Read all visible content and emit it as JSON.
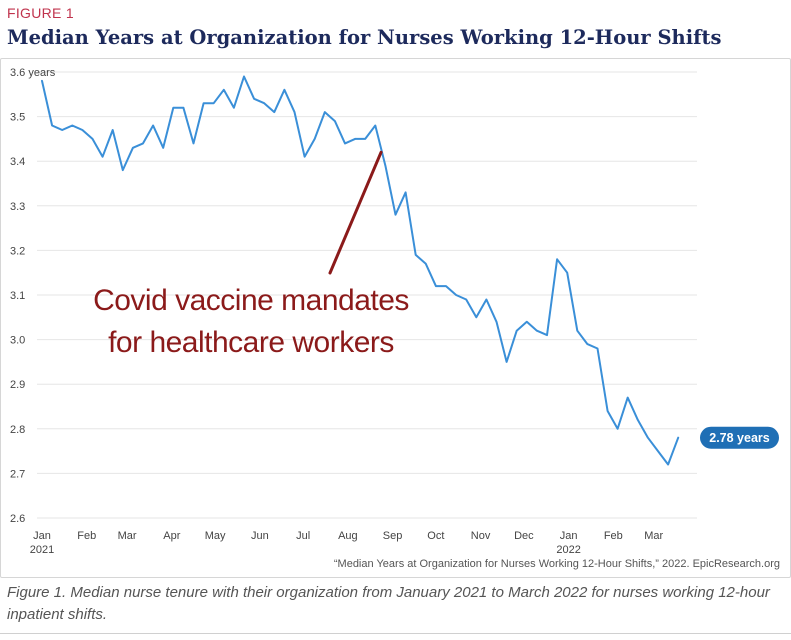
{
  "header": {
    "figure_label": "FIGURE 1",
    "title": "Median Years at Organization for Nurses Working 12-Hour Shifts"
  },
  "chart_data": {
    "type": "line",
    "title": "Median Years at Organization for Nurses Working 12-Hour Shifts",
    "xlabel": "",
    "ylabel": "",
    "ylim": [
      2.6,
      3.6
    ],
    "yticks": [
      2.6,
      2.7,
      2.8,
      2.9,
      3.0,
      3.1,
      3.2,
      3.3,
      3.4,
      3.5,
      3.6
    ],
    "ytick_labels": [
      "2.6",
      "2.7",
      "2.8",
      "2.9",
      "3.0",
      "3.1",
      "3.2",
      "3.3",
      "3.4",
      "3.5",
      "3.6 years"
    ],
    "xlim": [
      "2021-01-01",
      "2022-03-31"
    ],
    "x_ticks": [
      {
        "date": "2021-01-01",
        "label": "Jan",
        "sublabel": "2021"
      },
      {
        "date": "2021-02-01",
        "label": "Feb",
        "sublabel": ""
      },
      {
        "date": "2021-03-01",
        "label": "Mar",
        "sublabel": ""
      },
      {
        "date": "2021-04-01",
        "label": "Apr",
        "sublabel": ""
      },
      {
        "date": "2021-05-01",
        "label": "May",
        "sublabel": ""
      },
      {
        "date": "2021-06-01",
        "label": "Jun",
        "sublabel": ""
      },
      {
        "date": "2021-07-01",
        "label": "Jul",
        "sublabel": ""
      },
      {
        "date": "2021-08-01",
        "label": "Aug",
        "sublabel": ""
      },
      {
        "date": "2021-09-01",
        "label": "Sep",
        "sublabel": ""
      },
      {
        "date": "2021-10-01",
        "label": "Oct",
        "sublabel": ""
      },
      {
        "date": "2021-11-01",
        "label": "Nov",
        "sublabel": ""
      },
      {
        "date": "2021-12-01",
        "label": "Dec",
        "sublabel": ""
      },
      {
        "date": "2022-01-01",
        "label": "Jan",
        "sublabel": "2022"
      },
      {
        "date": "2022-02-01",
        "label": "Feb",
        "sublabel": ""
      },
      {
        "date": "2022-03-01",
        "label": "Mar",
        "sublabel": ""
      }
    ],
    "grid": true,
    "series": [
      {
        "color": "#3a8fd8",
        "points": [
          [
            "2021-01-01",
            3.58
          ],
          [
            "2021-01-08",
            3.48
          ],
          [
            "2021-01-15",
            3.47
          ],
          [
            "2021-01-22",
            3.48
          ],
          [
            "2021-01-29",
            3.47
          ],
          [
            "2021-02-05",
            3.45
          ],
          [
            "2021-02-12",
            3.41
          ],
          [
            "2021-02-19",
            3.47
          ],
          [
            "2021-02-26",
            3.38
          ],
          [
            "2021-03-05",
            3.43
          ],
          [
            "2021-03-12",
            3.44
          ],
          [
            "2021-03-19",
            3.48
          ],
          [
            "2021-03-26",
            3.43
          ],
          [
            "2021-04-02",
            3.52
          ],
          [
            "2021-04-09",
            3.52
          ],
          [
            "2021-04-16",
            3.44
          ],
          [
            "2021-04-23",
            3.53
          ],
          [
            "2021-04-30",
            3.53
          ],
          [
            "2021-05-07",
            3.56
          ],
          [
            "2021-05-14",
            3.52
          ],
          [
            "2021-05-21",
            3.59
          ],
          [
            "2021-05-28",
            3.54
          ],
          [
            "2021-06-04",
            3.53
          ],
          [
            "2021-06-11",
            3.51
          ],
          [
            "2021-06-18",
            3.56
          ],
          [
            "2021-06-25",
            3.51
          ],
          [
            "2021-07-02",
            3.41
          ],
          [
            "2021-07-09",
            3.45
          ],
          [
            "2021-07-16",
            3.51
          ],
          [
            "2021-07-23",
            3.49
          ],
          [
            "2021-07-30",
            3.44
          ],
          [
            "2021-08-06",
            3.45
          ],
          [
            "2021-08-13",
            3.45
          ],
          [
            "2021-08-20",
            3.48
          ],
          [
            "2021-08-27",
            3.39
          ],
          [
            "2021-09-03",
            3.28
          ],
          [
            "2021-09-10",
            3.33
          ],
          [
            "2021-09-17",
            3.19
          ],
          [
            "2021-09-24",
            3.17
          ],
          [
            "2021-10-01",
            3.12
          ],
          [
            "2021-10-08",
            3.12
          ],
          [
            "2021-10-15",
            3.1
          ],
          [
            "2021-10-22",
            3.09
          ],
          [
            "2021-10-29",
            3.05
          ],
          [
            "2021-11-05",
            3.09
          ],
          [
            "2021-11-12",
            3.04
          ],
          [
            "2021-11-19",
            2.95
          ],
          [
            "2021-11-26",
            3.02
          ],
          [
            "2021-12-03",
            3.04
          ],
          [
            "2021-12-10",
            3.02
          ],
          [
            "2021-12-17",
            3.01
          ],
          [
            "2021-12-24",
            3.18
          ],
          [
            "2021-12-31",
            3.15
          ],
          [
            "2022-01-07",
            3.02
          ],
          [
            "2022-01-14",
            2.99
          ],
          [
            "2022-01-21",
            2.98
          ],
          [
            "2022-01-28",
            2.84
          ],
          [
            "2022-02-04",
            2.8
          ],
          [
            "2022-02-11",
            2.87
          ],
          [
            "2022-02-18",
            2.82
          ],
          [
            "2022-02-25",
            2.78
          ],
          [
            "2022-03-04",
            2.75
          ],
          [
            "2022-03-11",
            2.72
          ],
          [
            "2022-03-18",
            2.78
          ]
        ]
      }
    ],
    "end_label": "2.78 years",
    "end_label_color": "#1f6fb5",
    "annotation": {
      "lines": [
        "Covid vaccine mandates",
        "for healthcare workers"
      ],
      "color": "#8b1a1a",
      "points_to": [
        "2021-08-24",
        3.42
      ]
    },
    "source": "“Median Years at Organization for Nurses Working 12-Hour Shifts,” 2022. EpicResearch.org"
  },
  "caption": "Figure 1. Median nurse tenure with their organization from January 2021 to March 2022 for nurses working 12-hour inpatient shifts."
}
